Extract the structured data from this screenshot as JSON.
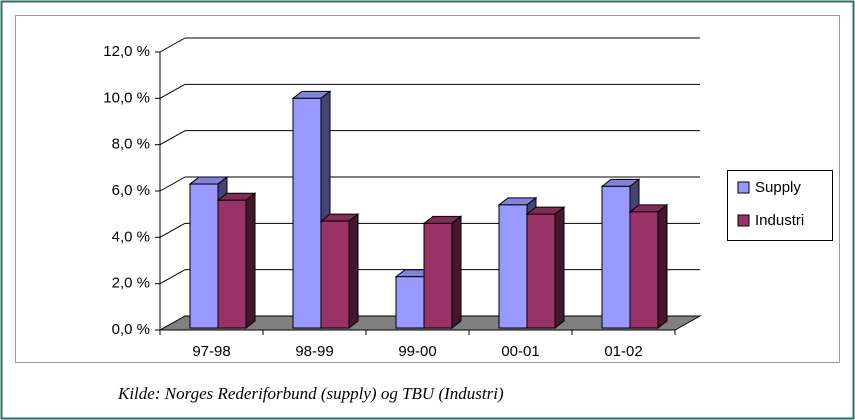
{
  "chart_data": {
    "type": "bar3d",
    "categories": [
      "97-98",
      "98-99",
      "99-00",
      "00-01",
      "01-02"
    ],
    "series": [
      {
        "name": "Supply",
        "color": "#9999ff",
        "values": [
          6.3,
          10.0,
          2.3,
          5.4,
          6.2
        ]
      },
      {
        "name": "Industri",
        "color": "#993366",
        "values": [
          5.6,
          4.7,
          4.6,
          5.0,
          5.1
        ]
      }
    ],
    "ylim": [
      0,
      12
    ],
    "yticks": [
      {
        "value": 0,
        "label": "0,0 %"
      },
      {
        "value": 2,
        "label": "2,0 %"
      },
      {
        "value": 4,
        "label": "4,0 %"
      },
      {
        "value": 6,
        "label": "6,0 %"
      },
      {
        "value": 8,
        "label": "8,0 %"
      },
      {
        "value": 10,
        "label": "10,0 %"
      },
      {
        "value": 12,
        "label": "12,0 %"
      }
    ],
    "grid": true,
    "legend": "right",
    "source": "Kilde: Norges Rederiforbund (supply) og TBU (Industri)"
  }
}
